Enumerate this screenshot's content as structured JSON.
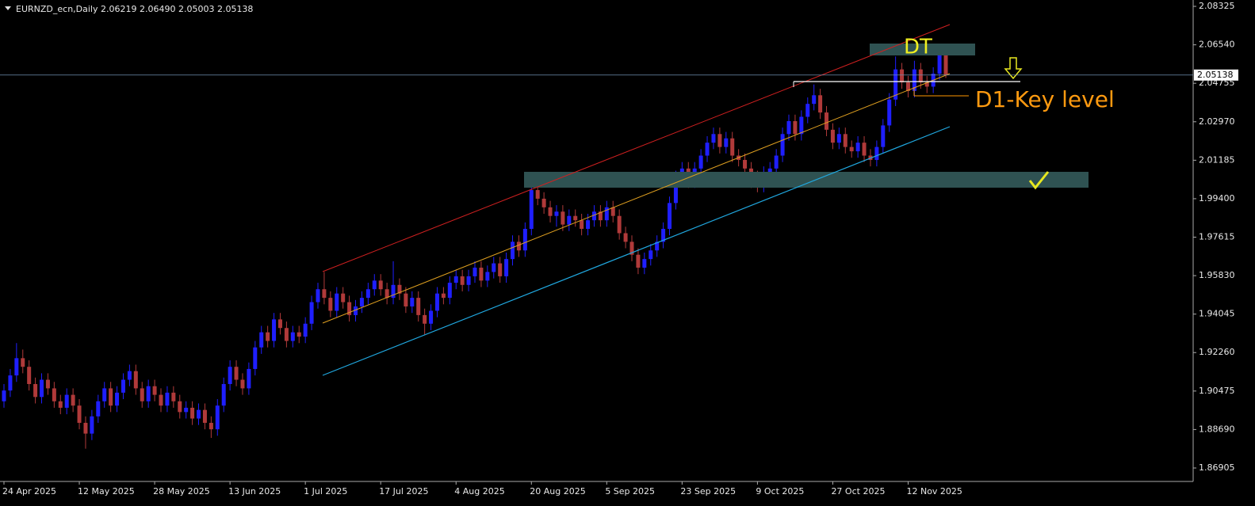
{
  "chart_data": {
    "type": "candlestick",
    "title": "EURNZD_ecn,Daily  2.06219 2.06490 2.05003 2.05138",
    "annotations": [
      "DT",
      "D1-Key level"
    ],
    "up_color": "#1f1fff",
    "down_color": "#b03a3a",
    "last_price": 2.05138,
    "ylim": [
      1.8628,
      2.0862
    ],
    "yticks": [
      2.08325,
      {
        "value": 2.0654,
        "label": "2.06540"
      },
      2.04755,
      {
        "value": 2.0297,
        "label": "2.02970"
      },
      2.01185,
      {
        "value": 1.994,
        "label": "1.99400"
      },
      1.97615,
      {
        "value": 1.9583,
        "label": "1.95830"
      },
      1.94045,
      {
        "value": 1.9226,
        "label": "1.92260"
      },
      1.90475,
      {
        "value": 1.8869,
        "label": "1.88690"
      },
      1.86905
    ],
    "categories": [
      "24 Apr 2025",
      null,
      null,
      null,
      null,
      null,
      null,
      null,
      null,
      null,
      null,
      null,
      "12 May 2025",
      null,
      null,
      null,
      null,
      null,
      null,
      null,
      null,
      null,
      null,
      null,
      "28 May 2025",
      null,
      null,
      null,
      null,
      null,
      null,
      null,
      null,
      null,
      null,
      null,
      "13 Jun 2025",
      null,
      null,
      null,
      null,
      null,
      null,
      null,
      null,
      null,
      null,
      null,
      "1 Jul 2025",
      null,
      null,
      null,
      null,
      null,
      null,
      null,
      null,
      null,
      null,
      null,
      "17 Jul 2025",
      null,
      null,
      null,
      null,
      null,
      null,
      null,
      null,
      null,
      null,
      null,
      "4 Aug 2025",
      null,
      null,
      null,
      null,
      null,
      null,
      null,
      null,
      null,
      null,
      null,
      "20 Aug 2025",
      null,
      null,
      null,
      null,
      null,
      null,
      null,
      null,
      null,
      null,
      null,
      "5 Sep 2025",
      null,
      null,
      null,
      null,
      null,
      null,
      null,
      null,
      null,
      null,
      null,
      "23 Sep 2025",
      null,
      null,
      null,
      null,
      null,
      null,
      null,
      null,
      null,
      null,
      null,
      "9 Oct 2025",
      null,
      null,
      null,
      null,
      null,
      null,
      null,
      null,
      null,
      null,
      null,
      "27 Oct 2025",
      null,
      null,
      null,
      null,
      null,
      null,
      null,
      null,
      null,
      null,
      null,
      "12 Nov 2025",
      null,
      null,
      null,
      null,
      null,
      null
    ],
    "open": [
      1.9,
      1.905,
      1.912,
      1.92,
      1.916,
      1.908,
      1.902,
      1.91,
      1.906,
      1.9,
      1.897,
      1.903,
      1.898,
      1.89,
      1.885,
      1.893,
      1.9,
      1.906,
      1.898,
      1.904,
      1.91,
      1.914,
      1.906,
      1.9,
      1.907,
      1.903,
      1.898,
      1.904,
      1.9,
      1.895,
      1.897,
      1.892,
      1.896,
      1.89,
      1.887,
      1.898,
      1.908,
      1.916,
      1.91,
      1.906,
      1.915,
      1.925,
      1.932,
      1.928,
      1.938,
      1.934,
      1.928,
      1.932,
      1.93,
      1.936,
      1.946,
      1.952,
      1.948,
      1.942,
      1.95,
      1.946,
      1.94,
      1.944,
      1.948,
      1.952,
      1.956,
      1.952,
      1.948,
      1.954,
      1.95,
      1.944,
      1.948,
      1.94,
      1.936,
      1.942,
      1.95,
      1.948,
      1.955,
      1.958,
      1.954,
      1.958,
      1.962,
      1.956,
      1.96,
      1.964,
      1.958,
      1.966,
      1.974,
      1.97,
      1.98,
      1.998,
      1.994,
      1.99,
      1.986,
      1.988,
      1.982,
      1.986,
      1.984,
      1.98,
      1.984,
      1.988,
      1.984,
      1.99,
      1.986,
      1.978,
      1.974,
      1.968,
      1.962,
      1.966,
      1.97,
      1.974,
      1.98,
      1.992,
      2.004,
      2.008,
      2.002,
      2.008,
      2.014,
      2.02,
      2.024,
      2.018,
      2.022,
      2.014,
      2.012,
      2.008,
      2.004,
      2.0,
      2.006,
      2.008,
      2.014,
      2.024,
      2.03,
      2.024,
      2.032,
      2.038,
      2.042,
      2.034,
      2.026,
      2.02,
      2.024,
      2.018,
      2.016,
      2.02,
      2.014,
      2.012,
      2.018,
      2.028,
      2.04,
      2.054,
      2.048,
      2.044,
      2.054,
      2.048,
      2.046,
      2.052,
      2.06219
    ],
    "high": [
      1.908,
      1.915,
      1.927,
      1.924,
      1.919,
      1.911,
      1.913,
      1.913,
      1.909,
      1.903,
      1.906,
      1.906,
      1.901,
      1.893,
      1.896,
      1.903,
      1.909,
      1.909,
      1.907,
      1.913,
      1.917,
      1.917,
      1.909,
      1.91,
      1.91,
      1.906,
      1.907,
      1.907,
      1.903,
      1.9,
      1.9,
      1.899,
      1.899,
      1.893,
      1.901,
      1.911,
      1.919,
      1.919,
      1.913,
      1.918,
      1.928,
      1.935,
      1.935,
      1.941,
      1.941,
      1.937,
      1.935,
      1.935,
      1.939,
      1.949,
      1.955,
      1.96,
      1.951,
      1.953,
      1.953,
      1.949,
      1.947,
      1.951,
      1.955,
      1.959,
      1.959,
      1.955,
      1.965,
      1.957,
      1.953,
      1.951,
      1.951,
      1.943,
      1.945,
      1.953,
      1.953,
      1.958,
      1.961,
      1.961,
      1.961,
      1.965,
      1.965,
      1.963,
      1.967,
      1.967,
      1.969,
      1.977,
      1.977,
      1.983,
      2.001,
      2.001,
      1.997,
      1.993,
      1.991,
      1.991,
      1.989,
      1.989,
      1.987,
      1.987,
      1.991,
      1.991,
      1.993,
      1.993,
      1.989,
      1.981,
      1.977,
      1.971,
      1.969,
      1.973,
      1.977,
      1.983,
      1.995,
      2.007,
      2.011,
      2.011,
      2.011,
      2.017,
      2.023,
      2.027,
      2.027,
      2.025,
      2.025,
      2.017,
      2.015,
      2.011,
      2.007,
      2.009,
      2.011,
      2.017,
      2.027,
      2.033,
      2.033,
      2.035,
      2.041,
      2.047,
      2.045,
      2.037,
      2.029,
      2.027,
      2.027,
      2.021,
      2.023,
      2.023,
      2.017,
      2.021,
      2.031,
      2.043,
      2.06,
      2.057,
      2.051,
      2.058,
      2.057,
      2.051,
      2.055,
      2.065,
      2.0649
    ],
    "low": [
      1.897,
      1.902,
      1.909,
      1.913,
      1.905,
      1.899,
      1.899,
      1.903,
      1.897,
      1.894,
      1.894,
      1.895,
      1.887,
      1.878,
      1.882,
      1.89,
      1.897,
      1.895,
      1.895,
      1.901,
      1.907,
      1.903,
      1.897,
      1.897,
      1.9,
      1.895,
      1.895,
      1.897,
      1.892,
      1.892,
      1.889,
      1.889,
      1.887,
      1.883,
      1.884,
      1.895,
      1.905,
      1.907,
      1.903,
      1.903,
      1.912,
      1.922,
      1.925,
      1.925,
      1.931,
      1.925,
      1.925,
      1.927,
      1.927,
      1.933,
      1.943,
      1.945,
      1.939,
      1.939,
      1.943,
      1.937,
      1.937,
      1.941,
      1.945,
      1.949,
      1.949,
      1.945,
      1.945,
      1.947,
      1.941,
      1.941,
      1.937,
      1.931,
      1.933,
      1.939,
      1.945,
      1.945,
      1.952,
      1.951,
      1.951,
      1.955,
      1.953,
      1.953,
      1.957,
      1.955,
      1.955,
      1.963,
      1.967,
      1.967,
      1.977,
      1.991,
      1.987,
      1.983,
      1.981,
      1.979,
      1.979,
      1.981,
      1.977,
      1.977,
      1.981,
      1.981,
      1.981,
      1.983,
      1.975,
      1.971,
      1.965,
      1.959,
      1.959,
      1.963,
      1.967,
      1.971,
      1.977,
      1.989,
      2.001,
      1.999,
      1.999,
      2.005,
      2.011,
      2.017,
      2.015,
      2.015,
      2.011,
      2.009,
      2.005,
      1.999,
      1.997,
      1.997,
      2.003,
      2.005,
      2.011,
      2.021,
      2.021,
      2.021,
      2.029,
      2.035,
      2.031,
      2.023,
      2.017,
      2.017,
      2.015,
      2.013,
      2.013,
      2.011,
      2.009,
      2.009,
      2.015,
      2.025,
      2.037,
      2.045,
      2.041,
      2.041,
      2.045,
      2.043,
      2.043,
      2.049,
      2.05003
    ],
    "close": [
      1.905,
      1.912,
      1.92,
      1.916,
      1.908,
      1.902,
      1.91,
      1.906,
      1.9,
      1.897,
      1.903,
      1.898,
      1.89,
      1.885,
      1.893,
      1.9,
      1.906,
      1.898,
      1.904,
      1.91,
      1.914,
      1.906,
      1.9,
      1.907,
      1.903,
      1.898,
      1.904,
      1.9,
      1.895,
      1.897,
      1.892,
      1.896,
      1.89,
      1.887,
      1.898,
      1.908,
      1.916,
      1.91,
      1.906,
      1.915,
      1.925,
      1.932,
      1.928,
      1.938,
      1.934,
      1.928,
      1.932,
      1.93,
      1.936,
      1.946,
      1.952,
      1.948,
      1.942,
      1.95,
      1.946,
      1.94,
      1.944,
      1.948,
      1.952,
      1.956,
      1.952,
      1.948,
      1.954,
      1.95,
      1.944,
      1.948,
      1.94,
      1.936,
      1.942,
      1.95,
      1.948,
      1.955,
      1.958,
      1.954,
      1.958,
      1.962,
      1.956,
      1.96,
      1.964,
      1.958,
      1.966,
      1.974,
      1.97,
      1.98,
      1.998,
      1.994,
      1.99,
      1.986,
      1.988,
      1.982,
      1.986,
      1.984,
      1.98,
      1.984,
      1.988,
      1.984,
      1.99,
      1.986,
      1.978,
      1.974,
      1.968,
      1.962,
      1.966,
      1.97,
      1.974,
      1.98,
      1.992,
      2.004,
      2.008,
      2.002,
      2.008,
      2.014,
      2.02,
      2.024,
      2.018,
      2.022,
      2.014,
      2.012,
      2.008,
      2.004,
      2.0,
      2.006,
      2.008,
      2.014,
      2.024,
      2.03,
      2.024,
      2.032,
      2.038,
      2.042,
      2.034,
      2.026,
      2.02,
      2.024,
      2.018,
      2.016,
      2.02,
      2.014,
      2.012,
      2.018,
      2.028,
      2.04,
      2.054,
      2.048,
      2.044,
      2.054,
      2.048,
      2.046,
      2.052,
      2.062,
      2.05138
    ]
  }
}
